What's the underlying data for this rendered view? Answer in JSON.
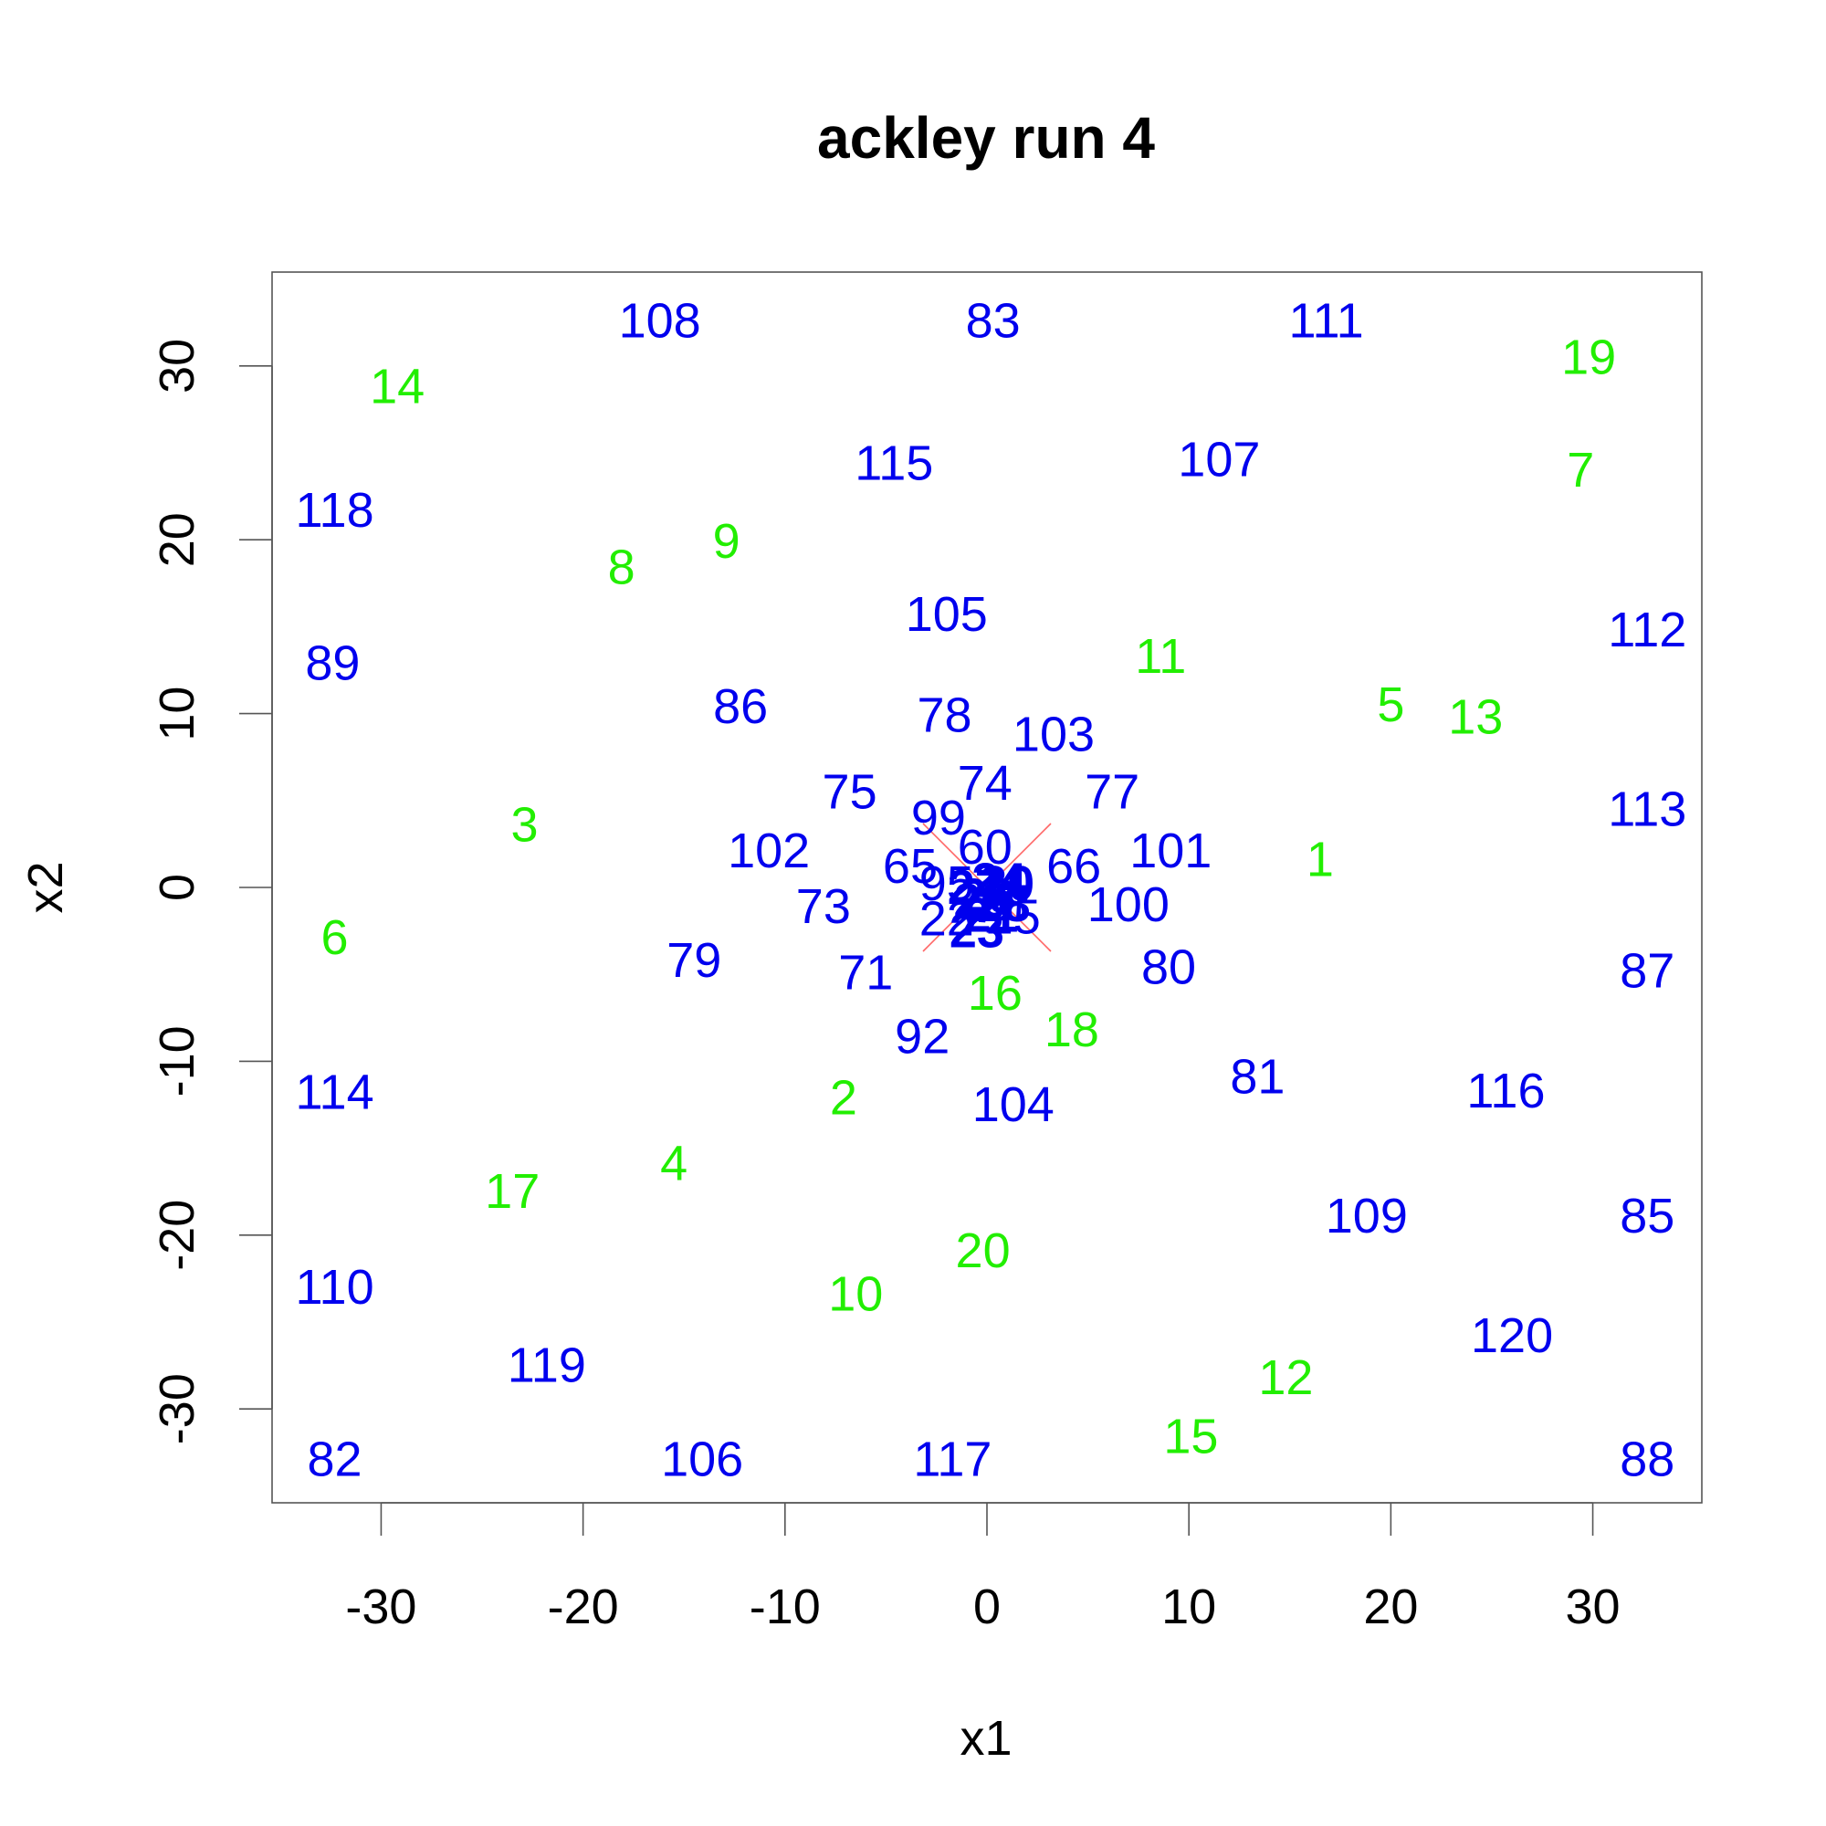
{
  "chart_data": {
    "type": "scatter",
    "title": "ackley run 4",
    "xlabel": "x1",
    "ylabel": "x2",
    "xlim": [
      -35.4,
      35.4
    ],
    "ylim": [
      -35.4,
      35.4
    ],
    "x_ticks": [
      -30,
      -20,
      -10,
      0,
      10,
      20,
      30
    ],
    "y_ticks": [
      -30,
      -20,
      -10,
      0,
      10,
      20,
      30
    ],
    "grid": false,
    "colors": {
      "initial": "#22ee00",
      "later": "#0000ee",
      "marker": "#ff6666"
    },
    "optimum_marker": {
      "shape": "x",
      "x": 0,
      "y": 0
    },
    "points": [
      {
        "label": "1",
        "x": 16.5,
        "y": 1.6,
        "group": "initial"
      },
      {
        "label": "2",
        "x": -7.1,
        "y": -12.1,
        "group": "initial"
      },
      {
        "label": "3",
        "x": -22.9,
        "y": 3.6,
        "group": "initial"
      },
      {
        "label": "4",
        "x": -15.5,
        "y": -15.9,
        "group": "initial"
      },
      {
        "label": "5",
        "x": 20.0,
        "y": 10.5,
        "group": "initial"
      },
      {
        "label": "6",
        "x": -32.3,
        "y": -2.9,
        "group": "initial"
      },
      {
        "label": "7",
        "x": 29.4,
        "y": 24.0,
        "group": "initial"
      },
      {
        "label": "8",
        "x": -18.1,
        "y": 18.4,
        "group": "initial"
      },
      {
        "label": "9",
        "x": -12.9,
        "y": 19.9,
        "group": "initial"
      },
      {
        "label": "10",
        "x": -6.5,
        "y": -23.4,
        "group": "initial"
      },
      {
        "label": "11",
        "x": 8.6,
        "y": 13.3,
        "group": "initial"
      },
      {
        "label": "12",
        "x": 14.8,
        "y": -28.2,
        "group": "initial"
      },
      {
        "label": "13",
        "x": 24.2,
        "y": 9.8,
        "group": "initial"
      },
      {
        "label": "14",
        "x": -29.2,
        "y": 28.8,
        "group": "initial"
      },
      {
        "label": "15",
        "x": 10.1,
        "y": -31.6,
        "group": "initial"
      },
      {
        "label": "16",
        "x": 0.4,
        "y": -6.1,
        "group": "initial"
      },
      {
        "label": "17",
        "x": -23.5,
        "y": -17.5,
        "group": "initial"
      },
      {
        "label": "18",
        "x": 4.2,
        "y": -8.2,
        "group": "initial"
      },
      {
        "label": "19",
        "x": 29.8,
        "y": 30.5,
        "group": "initial"
      },
      {
        "label": "20",
        "x": -0.2,
        "y": -20.9,
        "group": "initial"
      },
      {
        "label": "21",
        "x": 0.2,
        "y": -1.6,
        "group": "later",
        "bold": true
      },
      {
        "label": "22",
        "x": -2.0,
        "y": -1.8,
        "group": "later"
      },
      {
        "label": "23",
        "x": -0.5,
        "y": -2.5,
        "group": "later",
        "bold": true
      },
      {
        "label": "24",
        "x": 0.6,
        "y": 0.4,
        "group": "later",
        "bold": true
      },
      {
        "label": "25",
        "x": 1.3,
        "y": -1.7,
        "group": "later"
      },
      {
        "label": "26",
        "x": 0.0,
        "y": -0.5,
        "group": "later",
        "bold": true
      },
      {
        "label": "27",
        "x": -0.6,
        "y": 0.0,
        "group": "later",
        "bold": true
      },
      {
        "label": "28",
        "x": 0.8,
        "y": -1.0,
        "group": "later",
        "bold": true
      },
      {
        "label": "29",
        "x": -0.3,
        "y": -0.8,
        "group": "later",
        "bold": true
      },
      {
        "label": "30",
        "x": 1.0,
        "y": 0.2,
        "group": "later",
        "bold": true
      },
      {
        "label": "60",
        "x": -0.1,
        "y": 2.3,
        "group": "later"
      },
      {
        "label": "65",
        "x": -3.8,
        "y": 1.2,
        "group": "later"
      },
      {
        "label": "66",
        "x": 4.3,
        "y": 1.2,
        "group": "later"
      },
      {
        "label": "71",
        "x": -6.0,
        "y": -4.9,
        "group": "later"
      },
      {
        "label": "73",
        "x": -8.1,
        "y": -1.1,
        "group": "later"
      },
      {
        "label": "74",
        "x": -0.1,
        "y": 6.0,
        "group": "later"
      },
      {
        "label": "75",
        "x": -6.8,
        "y": 5.5,
        "group": "later"
      },
      {
        "label": "77",
        "x": 6.2,
        "y": 5.5,
        "group": "later"
      },
      {
        "label": "78",
        "x": -2.1,
        "y": 9.9,
        "group": "later"
      },
      {
        "label": "79",
        "x": -14.5,
        "y": -4.2,
        "group": "later"
      },
      {
        "label": "80",
        "x": 9.0,
        "y": -4.6,
        "group": "later"
      },
      {
        "label": "81",
        "x": 13.4,
        "y": -10.9,
        "group": "later"
      },
      {
        "label": "82",
        "x": -32.3,
        "y": -32.9,
        "group": "later"
      },
      {
        "label": "83",
        "x": 0.3,
        "y": 32.6,
        "group": "later"
      },
      {
        "label": "85",
        "x": 32.7,
        "y": -18.9,
        "group": "later"
      },
      {
        "label": "86",
        "x": -12.2,
        "y": 10.4,
        "group": "later"
      },
      {
        "label": "87",
        "x": 32.7,
        "y": -4.8,
        "group": "later"
      },
      {
        "label": "88",
        "x": 32.7,
        "y": -32.9,
        "group": "later"
      },
      {
        "label": "89",
        "x": -32.4,
        "y": 12.9,
        "group": "later"
      },
      {
        "label": "92",
        "x": -3.2,
        "y": -8.6,
        "group": "later"
      },
      {
        "label": "95",
        "x": -2.0,
        "y": 0.2,
        "group": "later"
      },
      {
        "label": "99",
        "x": -2.4,
        "y": 4.0,
        "group": "later"
      },
      {
        "label": "100",
        "x": 7.0,
        "y": -1.0,
        "group": "later"
      },
      {
        "label": "101",
        "x": 9.1,
        "y": 2.1,
        "group": "later"
      },
      {
        "label": "102",
        "x": -10.8,
        "y": 2.1,
        "group": "later"
      },
      {
        "label": "103",
        "x": 3.3,
        "y": 8.8,
        "group": "later"
      },
      {
        "label": "104",
        "x": 1.3,
        "y": -12.5,
        "group": "later"
      },
      {
        "label": "105",
        "x": -2.0,
        "y": 15.7,
        "group": "later"
      },
      {
        "label": "106",
        "x": -14.1,
        "y": -32.9,
        "group": "later"
      },
      {
        "label": "107",
        "x": 11.5,
        "y": 24.6,
        "group": "later"
      },
      {
        "label": "108",
        "x": -16.2,
        "y": 32.6,
        "group": "later"
      },
      {
        "label": "109",
        "x": 18.8,
        "y": -18.9,
        "group": "later"
      },
      {
        "label": "110",
        "x": -32.3,
        "y": -23.0,
        "group": "later"
      },
      {
        "label": "111",
        "x": 16.8,
        "y": 32.6,
        "group": "later"
      },
      {
        "label": "112",
        "x": 32.7,
        "y": 14.8,
        "group": "later"
      },
      {
        "label": "113",
        "x": 32.7,
        "y": 4.5,
        "group": "later"
      },
      {
        "label": "114",
        "x": -32.3,
        "y": -11.8,
        "group": "later"
      },
      {
        "label": "115",
        "x": -4.6,
        "y": 24.4,
        "group": "later"
      },
      {
        "label": "116",
        "x": 25.7,
        "y": -11.7,
        "group": "later"
      },
      {
        "label": "117",
        "x": -1.7,
        "y": -32.9,
        "group": "later"
      },
      {
        "label": "118",
        "x": -32.3,
        "y": 21.7,
        "group": "later"
      },
      {
        "label": "119",
        "x": -21.8,
        "y": -27.5,
        "group": "later"
      },
      {
        "label": "120",
        "x": 26.0,
        "y": -25.8,
        "group": "later"
      }
    ]
  }
}
